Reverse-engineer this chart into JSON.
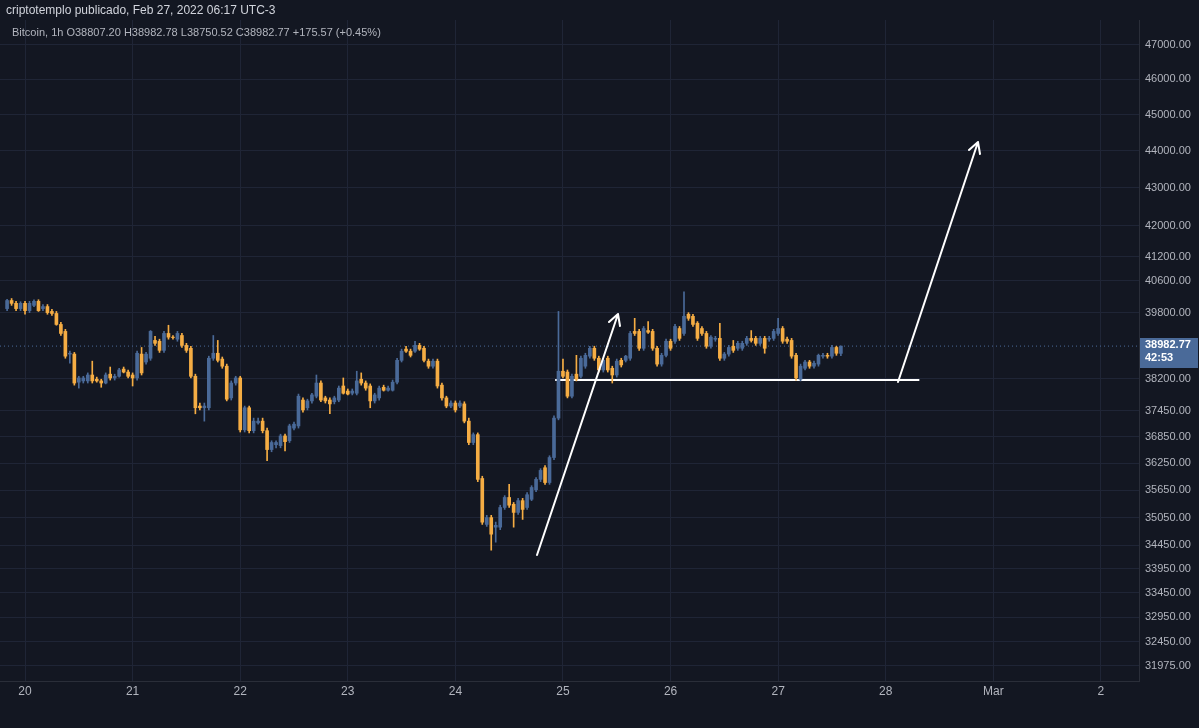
{
  "chart_data": {
    "type": "candlestick",
    "title": "criptotemplo publicado, Feb 27, 2022 06:17 UTC-3",
    "subtitle": "Bitcoin, 1h  O38807.20 H38982.78 L38750.52 C38982.77 +175.57 (+0.45%)",
    "annotations": [
      "42:53"
    ],
    "x": [
      "2022-02-19T20:00",
      "2022-02-19T21:00",
      "2022-02-19T22:00",
      "2022-02-19T23:00",
      "2022-02-20T00:00",
      "2022-02-20T01:00",
      "2022-02-20T02:00",
      "2022-02-20T03:00",
      "2022-02-20T04:00",
      "2022-02-20T05:00",
      "2022-02-20T06:00",
      "2022-02-20T07:00",
      "2022-02-20T08:00",
      "2022-02-20T09:00",
      "2022-02-20T10:00",
      "2022-02-20T11:00",
      "2022-02-20T12:00",
      "2022-02-20T13:00",
      "2022-02-20T14:00",
      "2022-02-20T15:00",
      "2022-02-20T16:00",
      "2022-02-20T17:00",
      "2022-02-20T18:00",
      "2022-02-20T19:00",
      "2022-02-20T20:00",
      "2022-02-20T21:00",
      "2022-02-20T22:00",
      "2022-02-20T23:00",
      "2022-02-21T00:00",
      "2022-02-21T01:00",
      "2022-02-21T02:00",
      "2022-02-21T03:00",
      "2022-02-21T04:00",
      "2022-02-21T05:00",
      "2022-02-21T06:00",
      "2022-02-21T07:00",
      "2022-02-21T08:00",
      "2022-02-21T09:00",
      "2022-02-21T10:00",
      "2022-02-21T11:00",
      "2022-02-21T12:00",
      "2022-02-21T13:00",
      "2022-02-21T14:00",
      "2022-02-21T15:00",
      "2022-02-21T16:00",
      "2022-02-21T17:00",
      "2022-02-21T18:00",
      "2022-02-21T19:00",
      "2022-02-21T20:00",
      "2022-02-21T21:00",
      "2022-02-21T22:00",
      "2022-02-21T23:00",
      "2022-02-22T00:00",
      "2022-02-22T01:00",
      "2022-02-22T02:00",
      "2022-02-22T03:00",
      "2022-02-22T04:00",
      "2022-02-22T05:00",
      "2022-02-22T06:00",
      "2022-02-22T07:00",
      "2022-02-22T08:00",
      "2022-02-22T09:00",
      "2022-02-22T10:00",
      "2022-02-22T11:00",
      "2022-02-22T12:00",
      "2022-02-22T13:00",
      "2022-02-22T14:00",
      "2022-02-22T15:00",
      "2022-02-22T16:00",
      "2022-02-22T17:00",
      "2022-02-22T18:00",
      "2022-02-22T19:00",
      "2022-02-22T20:00",
      "2022-02-22T21:00",
      "2022-02-22T22:00",
      "2022-02-22T23:00",
      "2022-02-23T00:00",
      "2022-02-23T01:00",
      "2022-02-23T02:00",
      "2022-02-23T03:00",
      "2022-02-23T04:00",
      "2022-02-23T05:00",
      "2022-02-23T06:00",
      "2022-02-23T07:00",
      "2022-02-23T08:00",
      "2022-02-23T09:00",
      "2022-02-23T10:00",
      "2022-02-23T11:00",
      "2022-02-23T12:00",
      "2022-02-23T13:00",
      "2022-02-23T14:00",
      "2022-02-23T15:00",
      "2022-02-23T16:00",
      "2022-02-23T17:00",
      "2022-02-23T18:00",
      "2022-02-23T19:00",
      "2022-02-23T20:00",
      "2022-02-23T21:00",
      "2022-02-23T22:00",
      "2022-02-23T23:00",
      "2022-02-24T00:00",
      "2022-02-24T01:00",
      "2022-02-24T02:00",
      "2022-02-24T03:00",
      "2022-02-24T04:00",
      "2022-02-24T05:00",
      "2022-02-24T06:00",
      "2022-02-24T07:00",
      "2022-02-24T08:00",
      "2022-02-24T09:00",
      "2022-02-24T10:00",
      "2022-02-24T11:00",
      "2022-02-24T12:00",
      "2022-02-24T13:00",
      "2022-02-24T14:00",
      "2022-02-24T15:00",
      "2022-02-24T16:00",
      "2022-02-24T17:00",
      "2022-02-24T18:00",
      "2022-02-24T19:00",
      "2022-02-24T20:00",
      "2022-02-24T21:00",
      "2022-02-24T22:00",
      "2022-02-24T23:00",
      "2022-02-25T00:00",
      "2022-02-25T01:00",
      "2022-02-25T02:00",
      "2022-02-25T03:00",
      "2022-02-25T04:00",
      "2022-02-25T05:00",
      "2022-02-25T06:00",
      "2022-02-25T07:00",
      "2022-02-25T08:00",
      "2022-02-25T09:00",
      "2022-02-25T10:00",
      "2022-02-25T11:00",
      "2022-02-25T12:00",
      "2022-02-25T13:00",
      "2022-02-25T14:00",
      "2022-02-25T15:00",
      "2022-02-25T16:00",
      "2022-02-25T17:00",
      "2022-02-25T18:00",
      "2022-02-25T19:00",
      "2022-02-25T20:00",
      "2022-02-25T21:00",
      "2022-02-25T22:00",
      "2022-02-25T23:00",
      "2022-02-26T00:00",
      "2022-02-26T01:00",
      "2022-02-26T02:00",
      "2022-02-26T03:00",
      "2022-02-26T04:00",
      "2022-02-26T05:00",
      "2022-02-26T06:00",
      "2022-02-26T07:00",
      "2022-02-26T08:00",
      "2022-02-26T09:00",
      "2022-02-26T10:00",
      "2022-02-26T11:00",
      "2022-02-26T12:00",
      "2022-02-26T13:00",
      "2022-02-26T14:00",
      "2022-02-26T15:00",
      "2022-02-26T16:00",
      "2022-02-26T17:00",
      "2022-02-26T18:00",
      "2022-02-26T19:00",
      "2022-02-26T20:00",
      "2022-02-26T21:00",
      "2022-02-26T22:00",
      "2022-02-26T23:00",
      "2022-02-27T00:00",
      "2022-02-27T01:00",
      "2022-02-27T02:00",
      "2022-02-27T03:00",
      "2022-02-27T04:00",
      "2022-02-27T05:00",
      "2022-02-27T06:00",
      "2022-02-27T07:00",
      "2022-02-27T08:00",
      "2022-02-27T09:00",
      "2022-02-27T10:00",
      "2022-02-27T11:00",
      "2022-02-27T12:00",
      "2022-02-27T13:00",
      "2022-02-27T14:00"
    ],
    "ohlc": [
      [
        39900,
        40130,
        39850,
        40100
      ],
      [
        40100,
        40150,
        39980,
        40030
      ],
      [
        40030,
        40080,
        39850,
        39900
      ],
      [
        39900,
        40070,
        39850,
        40030
      ],
      [
        40030,
        40080,
        39760,
        39850
      ],
      [
        39850,
        40080,
        39800,
        40030
      ],
      [
        39980,
        40120,
        39950,
        40080
      ],
      [
        40080,
        40120,
        39830,
        39850
      ],
      [
        39900,
        40000,
        39850,
        39950
      ],
      [
        39950,
        40000,
        39760,
        39800
      ],
      [
        39830,
        39880,
        39730,
        39780
      ],
      [
        39780,
        39830,
        39490,
        39510
      ],
      [
        39510,
        39560,
        39240,
        39290
      ],
      [
        39340,
        39390,
        38690,
        38740
      ],
      [
        38790,
        38860,
        38570,
        38810
      ],
      [
        38790,
        38830,
        38050,
        38100
      ],
      [
        38120,
        38260,
        37980,
        38220
      ],
      [
        38150,
        38260,
        38100,
        38220
      ],
      [
        38150,
        38340,
        38100,
        38290
      ],
      [
        38290,
        38620,
        38100,
        38150
      ],
      [
        38190,
        38240,
        38120,
        38150
      ],
      [
        38150,
        38190,
        38000,
        38100
      ],
      [
        38100,
        38340,
        38080,
        38290
      ],
      [
        38310,
        38480,
        38170,
        38220
      ],
      [
        38220,
        38310,
        38170,
        38260
      ],
      [
        38260,
        38450,
        38240,
        38410
      ],
      [
        38430,
        38480,
        38340,
        38360
      ],
      [
        38360,
        38410,
        38220,
        38260
      ],
      [
        38290,
        38340,
        38030,
        38220
      ],
      [
        38220,
        38860,
        38170,
        38810
      ],
      [
        38790,
        38950,
        38290,
        38340
      ],
      [
        38600,
        38830,
        38550,
        38790
      ],
      [
        38690,
        39360,
        38640,
        39340
      ],
      [
        39120,
        39220,
        39000,
        39050
      ],
      [
        39100,
        39150,
        38830,
        38880
      ],
      [
        38880,
        39340,
        38830,
        39290
      ],
      [
        39290,
        39490,
        39150,
        39200
      ],
      [
        39200,
        39240,
        39150,
        39190
      ],
      [
        39150,
        39340,
        39100,
        39290
      ],
      [
        39240,
        39290,
        38950,
        39000
      ],
      [
        39000,
        39050,
        38830,
        38880
      ],
      [
        38930,
        38980,
        38220,
        38260
      ],
      [
        38260,
        38310,
        37380,
        37520
      ],
      [
        37560,
        37630,
        37470,
        37520
      ],
      [
        37520,
        37630,
        37210,
        37560
      ],
      [
        37520,
        38740,
        37470,
        38690
      ],
      [
        38690,
        39240,
        38640,
        38810
      ],
      [
        38810,
        39120,
        38600,
        38640
      ],
      [
        38670,
        38720,
        38450,
        38500
      ],
      [
        38500,
        38550,
        37680,
        37720
      ],
      [
        37750,
        38150,
        37700,
        38100
      ],
      [
        38100,
        38260,
        38050,
        38220
      ],
      [
        38220,
        38260,
        36960,
        37010
      ],
      [
        37010,
        37560,
        36960,
        37520
      ],
      [
        37520,
        37560,
        36940,
        36990
      ],
      [
        36990,
        37280,
        36940,
        37210
      ],
      [
        37170,
        37280,
        37140,
        37210
      ],
      [
        37210,
        37280,
        36940,
        36990
      ],
      [
        36990,
        37050,
        36310,
        36560
      ],
      [
        36560,
        36760,
        36510,
        36720
      ],
      [
        36670,
        36760,
        36600,
        36720
      ],
      [
        36650,
        36910,
        36600,
        36870
      ],
      [
        36870,
        36910,
        36530,
        36740
      ],
      [
        36760,
        37140,
        36720,
        37100
      ],
      [
        37050,
        37190,
        37010,
        37140
      ],
      [
        37100,
        37840,
        37050,
        37790
      ],
      [
        37700,
        37750,
        37420,
        37470
      ],
      [
        37520,
        37720,
        37470,
        37680
      ],
      [
        37680,
        37860,
        37630,
        37820
      ],
      [
        37790,
        38290,
        37750,
        38100
      ],
      [
        38100,
        38150,
        37660,
        37700
      ],
      [
        37750,
        37790,
        37630,
        37680
      ],
      [
        37700,
        37750,
        37380,
        37610
      ],
      [
        37660,
        37790,
        37610,
        37750
      ],
      [
        37700,
        38030,
        37660,
        37980
      ],
      [
        38030,
        38220,
        37840,
        37860
      ],
      [
        37910,
        37960,
        37820,
        37840
      ],
      [
        37860,
        37960,
        37820,
        37910
      ],
      [
        37860,
        38380,
        37820,
        38150
      ],
      [
        38190,
        38340,
        38050,
        38100
      ],
      [
        38100,
        38150,
        37930,
        37980
      ],
      [
        38030,
        38080,
        37520,
        37680
      ],
      [
        37680,
        37860,
        37630,
        37820
      ],
      [
        37750,
        38030,
        37700,
        37980
      ],
      [
        38000,
        38050,
        37910,
        37930
      ],
      [
        37930,
        38030,
        37910,
        37980
      ],
      [
        37930,
        38170,
        37910,
        38120
      ],
      [
        38120,
        38690,
        38080,
        38640
      ],
      [
        38640,
        38910,
        38600,
        38860
      ],
      [
        38910,
        38980,
        38830,
        38860
      ],
      [
        38860,
        38910,
        38720,
        38760
      ],
      [
        38860,
        39100,
        38830,
        39000
      ],
      [
        39000,
        39050,
        38880,
        38910
      ],
      [
        38930,
        38980,
        38600,
        38640
      ],
      [
        38620,
        38670,
        38450,
        38500
      ],
      [
        38500,
        38670,
        38450,
        38620
      ],
      [
        38620,
        38670,
        37980,
        38030
      ],
      [
        38050,
        38100,
        37700,
        37750
      ],
      [
        37750,
        37790,
        37520,
        37560
      ],
      [
        37560,
        37680,
        37520,
        37630
      ],
      [
        37630,
        37680,
        37420,
        37470
      ],
      [
        37560,
        37680,
        37520,
        37630
      ],
      [
        37610,
        37660,
        37170,
        37210
      ],
      [
        37210,
        37280,
        36670,
        36720
      ],
      [
        36720,
        36940,
        36670,
        36900
      ],
      [
        36900,
        36940,
        35840,
        35890
      ],
      [
        35910,
        35960,
        34900,
        34950
      ],
      [
        34900,
        35100,
        34860,
        35050
      ],
      [
        35050,
        35100,
        34350,
        34690
      ],
      [
        34840,
        34950,
        34520,
        34880
      ],
      [
        34840,
        35320,
        34790,
        35270
      ],
      [
        35270,
        35530,
        35230,
        35490
      ],
      [
        35490,
        35780,
        35270,
        35320
      ],
      [
        35340,
        35380,
        34840,
        35160
      ],
      [
        35160,
        35470,
        35120,
        35420
      ],
      [
        35420,
        35470,
        35010,
        35230
      ],
      [
        35270,
        35600,
        35230,
        35550
      ],
      [
        35450,
        35750,
        35420,
        35710
      ],
      [
        35660,
        35930,
        35620,
        35890
      ],
      [
        35890,
        36130,
        35840,
        36090
      ],
      [
        36150,
        36200,
        35780,
        35820
      ],
      [
        35820,
        36420,
        35780,
        36380
      ],
      [
        36380,
        37330,
        36330,
        37280
      ],
      [
        37280,
        39830,
        37240,
        38380
      ],
      [
        38380,
        38670,
        38220,
        38260
      ],
      [
        38360,
        38410,
        37750,
        37790
      ],
      [
        37790,
        38310,
        37750,
        38260
      ],
      [
        38310,
        38760,
        38150,
        38190
      ],
      [
        38260,
        38740,
        38220,
        38690
      ],
      [
        38500,
        38810,
        38450,
        38760
      ],
      [
        38740,
        38980,
        38690,
        38930
      ],
      [
        38930,
        38980,
        38640,
        38690
      ],
      [
        38690,
        38740,
        38360,
        38410
      ],
      [
        38410,
        38690,
        38360,
        38640
      ],
      [
        38690,
        38740,
        38360,
        38410
      ],
      [
        38450,
        38500,
        38100,
        38290
      ],
      [
        38290,
        38670,
        38240,
        38620
      ],
      [
        38640,
        38690,
        38480,
        38530
      ],
      [
        38640,
        38760,
        38600,
        38740
      ],
      [
        38690,
        39340,
        38640,
        39290
      ],
      [
        39340,
        39660,
        39240,
        39290
      ],
      [
        39340,
        39390,
        38880,
        38930
      ],
      [
        38930,
        39460,
        38880,
        39410
      ],
      [
        39360,
        39580,
        39290,
        39320
      ],
      [
        39340,
        39390,
        38880,
        38930
      ],
      [
        38930,
        38980,
        38500,
        38550
      ],
      [
        38550,
        38810,
        38500,
        38760
      ],
      [
        38760,
        39150,
        38720,
        39100
      ],
      [
        39100,
        39150,
        38880,
        38930
      ],
      [
        39100,
        39510,
        39050,
        39460
      ],
      [
        39410,
        39460,
        39120,
        39170
      ],
      [
        39290,
        40320,
        39240,
        39710
      ],
      [
        39760,
        39800,
        39610,
        39660
      ],
      [
        39710,
        39760,
        39460,
        39510
      ],
      [
        39540,
        39580,
        39120,
        39170
      ],
      [
        39410,
        39460,
        39240,
        39290
      ],
      [
        39290,
        39340,
        38930,
        38980
      ],
      [
        38980,
        39240,
        38930,
        39200
      ],
      [
        39150,
        39220,
        39100,
        39170
      ],
      [
        39170,
        39540,
        38640,
        38690
      ],
      [
        38690,
        38830,
        38640,
        38790
      ],
      [
        38790,
        39000,
        38740,
        38950
      ],
      [
        38980,
        39120,
        38830,
        38880
      ],
      [
        38930,
        39100,
        38880,
        39050
      ],
      [
        38930,
        39100,
        38880,
        39050
      ],
      [
        39050,
        39220,
        39000,
        39170
      ],
      [
        39170,
        39360,
        39080,
        39120
      ],
      [
        39170,
        39220,
        39000,
        39050
      ],
      [
        39050,
        39220,
        39000,
        39170
      ],
      [
        39170,
        39220,
        38810,
        38930
      ],
      [
        39150,
        39220,
        39100,
        39170
      ],
      [
        39170,
        39390,
        39120,
        39340
      ],
      [
        39290,
        39660,
        39240,
        39410
      ],
      [
        39410,
        39460,
        39050,
        39100
      ],
      [
        39150,
        39200,
        39050,
        39100
      ],
      [
        39120,
        39170,
        38690,
        38740
      ],
      [
        38760,
        38810,
        38170,
        38220
      ],
      [
        38190,
        38550,
        38150,
        38500
      ],
      [
        38450,
        38640,
        38410,
        38600
      ],
      [
        38600,
        38640,
        38450,
        38500
      ],
      [
        38500,
        38620,
        38450,
        38570
      ],
      [
        38550,
        38790,
        38500,
        38760
      ],
      [
        38740,
        38810,
        38690,
        38760
      ],
      [
        38760,
        38810,
        38690,
        38740
      ],
      [
        38740,
        39000,
        38690,
        38950
      ],
      [
        38950,
        38980,
        38760,
        38810
      ],
      [
        38807.2,
        38982.78,
        38750.52,
        38982.77
      ]
    ],
    "colors": [
      "#4a6a99",
      "#f5ad44",
      "#f5ad44",
      "#4a6a99",
      "#f5ad44",
      "#4a6a99",
      "#4a6a99",
      "#f5ad44",
      "#4a6a99",
      "#f5ad44",
      "#f5ad44",
      "#f5ad44",
      "#f5ad44",
      "#f5ad44",
      "#4a6a99",
      "#f5ad44",
      "#4a6a99",
      "#4a6a99",
      "#4a6a99",
      "#f5ad44",
      "#f5ad44",
      "#f5ad44",
      "#4a6a99",
      "#f5ad44",
      "#4a6a99",
      "#4a6a99",
      "#f5ad44",
      "#f5ad44",
      "#f5ad44",
      "#4a6a99",
      "#f5ad44",
      "#4a6a99",
      "#4a6a99",
      "#f5ad44",
      "#f5ad44",
      "#4a6a99",
      "#f5ad44",
      "#f5ad44",
      "#4a6a99",
      "#f5ad44",
      "#f5ad44",
      "#f5ad44",
      "#f5ad44",
      "#f5ad44",
      "#4a6a99",
      "#4a6a99",
      "#4a6a99",
      "#f5ad44",
      "#f5ad44",
      "#f5ad44",
      "#4a6a99",
      "#4a6a99",
      "#f5ad44",
      "#4a6a99",
      "#f5ad44",
      "#4a6a99",
      "#4a6a99",
      "#f5ad44",
      "#f5ad44",
      "#4a6a99",
      "#4a6a99",
      "#4a6a99",
      "#f5ad44",
      "#4a6a99",
      "#4a6a99",
      "#4a6a99",
      "#f5ad44",
      "#4a6a99",
      "#4a6a99",
      "#4a6a99",
      "#f5ad44",
      "#f5ad44",
      "#f5ad44",
      "#4a6a99",
      "#4a6a99",
      "#f5ad44",
      "#f5ad44",
      "#4a6a99",
      "#4a6a99",
      "#f5ad44",
      "#f5ad44",
      "#f5ad44",
      "#4a6a99",
      "#4a6a99",
      "#f5ad44",
      "#4a6a99",
      "#4a6a99",
      "#4a6a99",
      "#4a6a99",
      "#f5ad44",
      "#f5ad44",
      "#4a6a99",
      "#f5ad44",
      "#f5ad44",
      "#f5ad44",
      "#4a6a99",
      "#f5ad44",
      "#f5ad44",
      "#f5ad44",
      "#4a6a99",
      "#f5ad44",
      "#4a6a99",
      "#f5ad44",
      "#f5ad44",
      "#4a6a99",
      "#f5ad44",
      "#f5ad44",
      "#4a6a99",
      "#f5ad44",
      "#4a6a99",
      "#4a6a99",
      "#4a6a99",
      "#f5ad44",
      "#f5ad44",
      "#4a6a99",
      "#f5ad44",
      "#4a6a99",
      "#4a6a99",
      "#4a6a99",
      "#4a6a99",
      "#f5ad44",
      "#4a6a99",
      "#4a6a99",
      "#4a6a99",
      "#f5ad44",
      "#f5ad44",
      "#4a6a99",
      "#f5ad44",
      "#4a6a99",
      "#4a6a99",
      "#4a6a99",
      "#f5ad44",
      "#f5ad44",
      "#4a6a99",
      "#f5ad44",
      "#f5ad44",
      "#4a6a99",
      "#f5ad44",
      "#4a6a99",
      "#4a6a99",
      "#f5ad44",
      "#f5ad44",
      "#4a6a99",
      "#f5ad44",
      "#f5ad44",
      "#f5ad44",
      "#4a6a99",
      "#4a6a99",
      "#f5ad44",
      "#4a6a99",
      "#f5ad44",
      "#4a6a99",
      "#f5ad44",
      "#f5ad44",
      "#f5ad44",
      "#f5ad44",
      "#f5ad44",
      "#4a6a99",
      "#4a6a99",
      "#f5ad44",
      "#4a6a99",
      "#4a6a99",
      "#f5ad44",
      "#4a6a99",
      "#4a6a99",
      "#4a6a99",
      "#f5ad44",
      "#f5ad44",
      "#4a6a99",
      "#f5ad44",
      "#4a6a99",
      "#4a6a99",
      "#4a6a99",
      "#f5ad44",
      "#f5ad44",
      "#f5ad44",
      "#f5ad44",
      "#4a6a99",
      "#4a6a99",
      "#f5ad44",
      "#4a6a99",
      "#4a6a99",
      "#4a6a99",
      "#f5ad44",
      "#4a6a99",
      "#f5ad44",
      "#4a6a99"
    ],
    "series": [
      {
        "type": "line",
        "color": "#ffffff",
        "x": [
          "2022-02-24T22:15",
          "2022-02-28T07:30"
        ],
        "values": [
          38170,
          38170
        ]
      }
    ],
    "ref_lines": [
      {
        "axis": "y",
        "value": 38982.77,
        "label": "38982.77",
        "color": "#4a6a99",
        "line_style": "dotted"
      }
    ],
    "xlim": [
      "2022-02-19T18:25",
      "2022-03-02T08:30"
    ],
    "xticks": [
      {
        "value": "2022-02-20",
        "label": "20"
      },
      {
        "value": "2022-02-21",
        "label": "21"
      },
      {
        "value": "2022-02-22",
        "label": "22"
      },
      {
        "value": "2022-02-23",
        "label": "23"
      },
      {
        "value": "2022-02-24",
        "label": "24"
      },
      {
        "value": "2022-02-25",
        "label": "25"
      },
      {
        "value": "2022-02-26",
        "label": "26"
      },
      {
        "value": "2022-02-27",
        "label": "27"
      },
      {
        "value": "2022-02-28",
        "label": "28"
      },
      {
        "value": "2022-03-01",
        "label": "Mar"
      },
      {
        "value": "2022-03-02",
        "label": "2"
      }
    ],
    "ylim": [
      31660,
      47720
    ],
    "yticks": [
      {
        "value": 31975,
        "label": "31975.00"
      },
      {
        "value": 32450,
        "label": "32450.00"
      },
      {
        "value": 32950,
        "label": "32950.00"
      },
      {
        "value": 33450,
        "label": "33450.00"
      },
      {
        "value": 33950,
        "label": "33950.00"
      },
      {
        "value": 34450,
        "label": "34450.00"
      },
      {
        "value": 35050,
        "label": "35050.00"
      },
      {
        "value": 35650,
        "label": "35650.00"
      },
      {
        "value": 36250,
        "label": "36250.00"
      },
      {
        "value": 36850,
        "label": "36850.00"
      },
      {
        "value": 37450,
        "label": "37450.00"
      },
      {
        "value": 38200,
        "label": "38200.00"
      },
      {
        "value": 39800,
        "label": "39800.00"
      },
      {
        "value": 40600,
        "label": "40600.00"
      },
      {
        "value": 41200,
        "label": "41200.00"
      },
      {
        "value": 42000,
        "label": "42000.00"
      },
      {
        "value": 43000,
        "label": "43000.00"
      },
      {
        "value": 44000,
        "label": "44000.00"
      },
      {
        "value": 45000,
        "label": "45000.00"
      },
      {
        "value": 46000,
        "label": "46000.00"
      },
      {
        "value": 47000,
        "label": "47000.00"
      }
    ],
    "log": "y",
    "grid": true,
    "legend": false
  }
}
